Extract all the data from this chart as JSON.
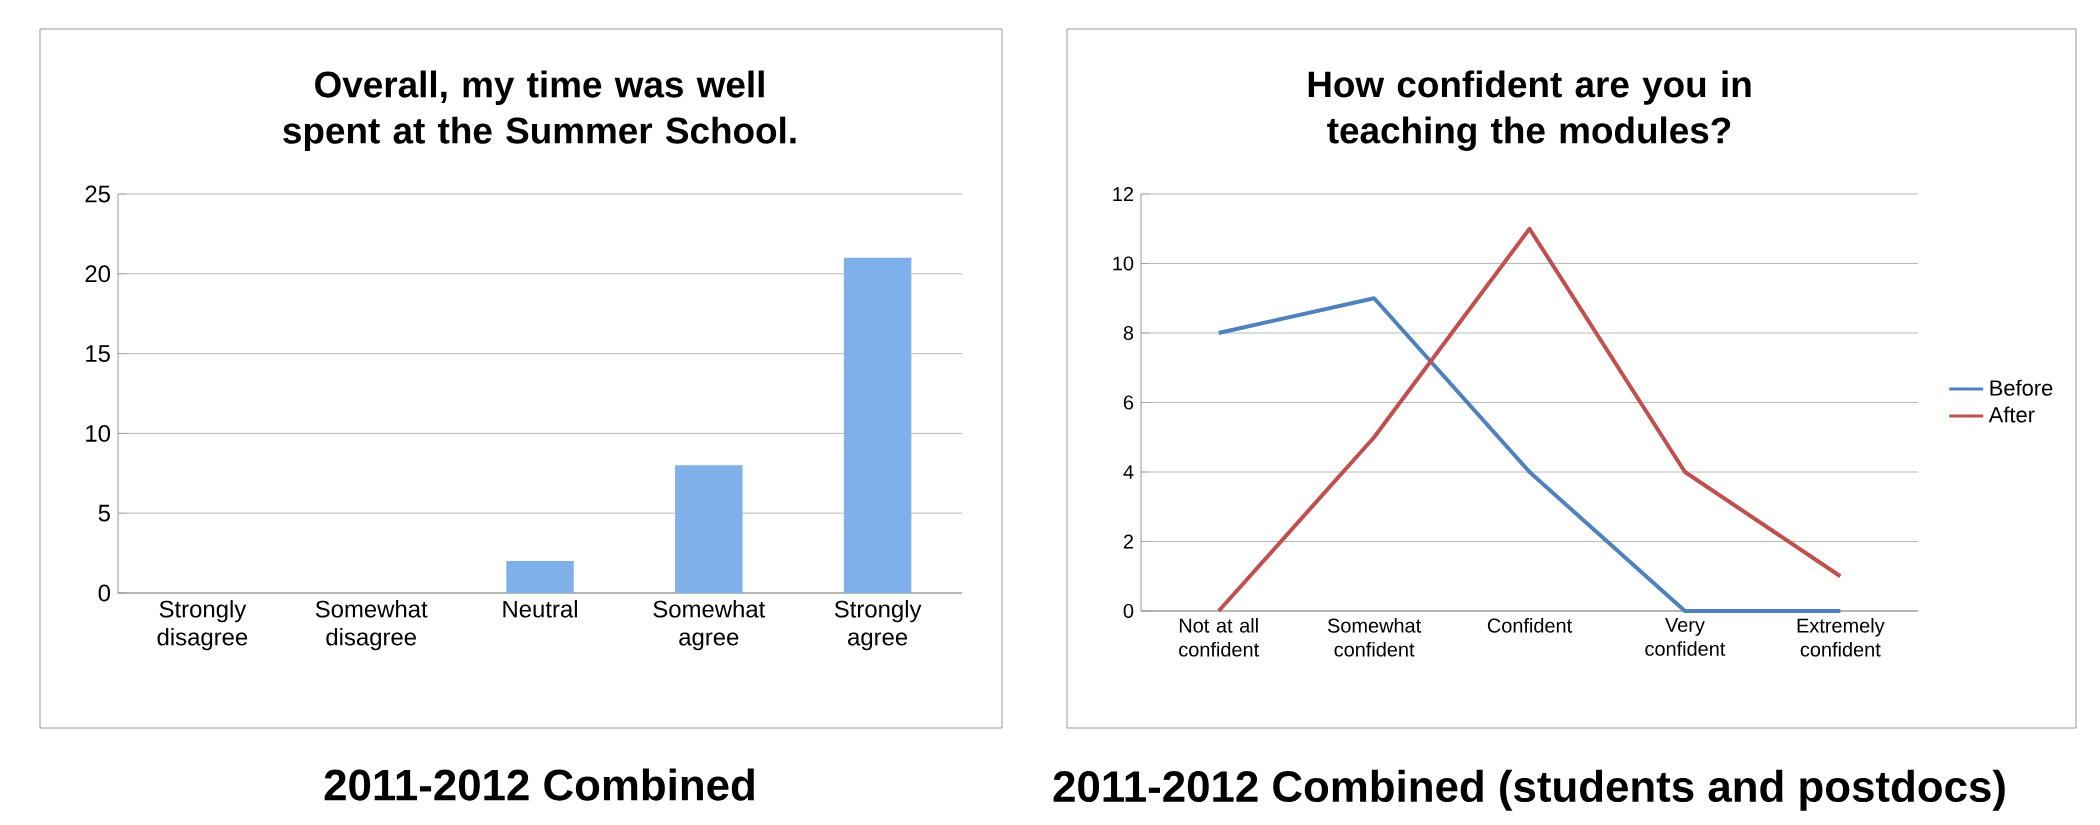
{
  "chart_data": [
    {
      "type": "bar",
      "title": "Overall, my time was well spent at the Summer School.",
      "categories": [
        "Strongly disagree",
        "Somewhat disagree",
        "Neutral",
        "Somewhat agree",
        "Strongly agree"
      ],
      "values": [
        0,
        0,
        2,
        8,
        21
      ],
      "color": "#7fb0ea",
      "ylim": [
        0,
        25
      ],
      "yticks": [
        0,
        5,
        10,
        15,
        20,
        25
      ],
      "grid": "y",
      "annotations": [
        "2011-2012 Combined"
      ]
    },
    {
      "type": "line",
      "title": "How confident are you in teaching the modules?",
      "categories": [
        "Not at all confident",
        "Somewhat confident",
        "Confident",
        "Very confident",
        "Extremely confident"
      ],
      "series": [
        {
          "name": "Before",
          "color": "#4f81bd",
          "values": [
            8,
            9,
            4,
            0,
            0
          ]
        },
        {
          "name": "After",
          "color": "#c0504d",
          "values": [
            0,
            5,
            11,
            4,
            1
          ]
        }
      ],
      "ylim": [
        0,
        12
      ],
      "yticks": [
        0,
        2,
        4,
        6,
        8,
        10,
        12
      ],
      "grid": "y",
      "legend": "right",
      "annotations": [
        "2011-2012 Combined (students and postdocs)"
      ]
    }
  ]
}
